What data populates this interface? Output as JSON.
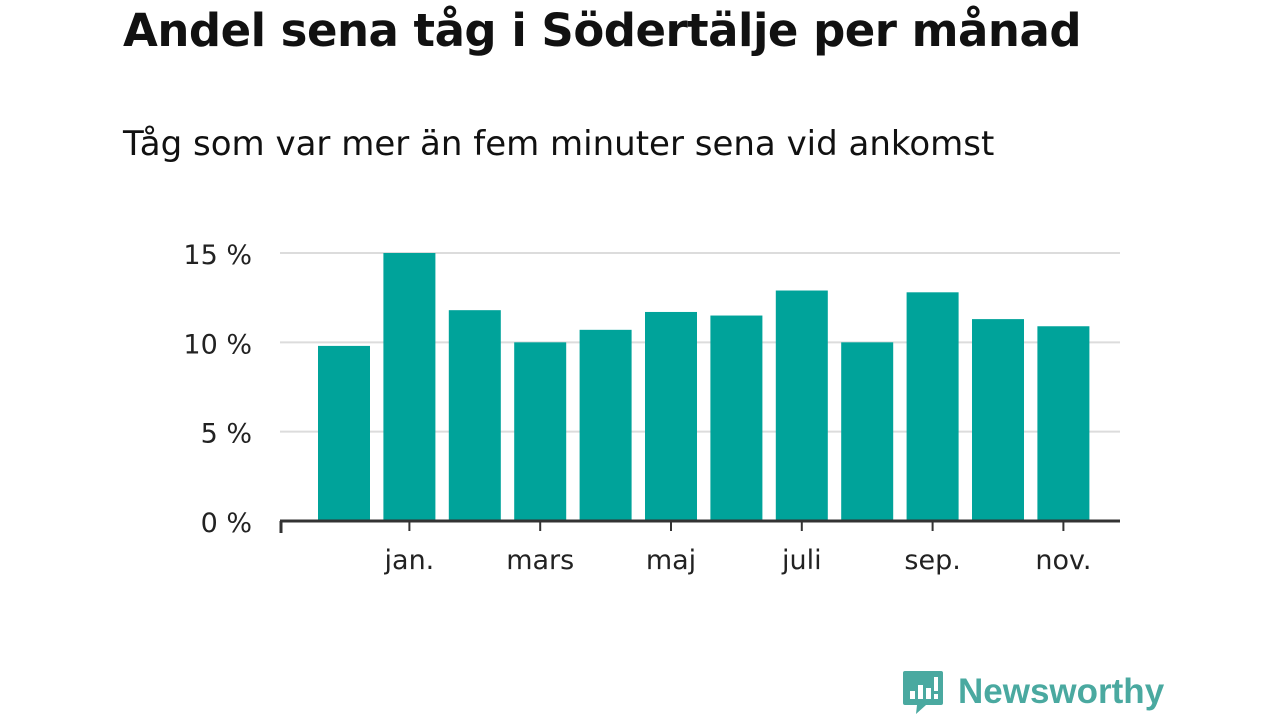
{
  "chart_data": {
    "type": "bar",
    "title": "Andel sena tåg i Södertälje per månad",
    "subtitle": "Tåg som var mer än fem minuter sena vid ankomst",
    "xlabel": "",
    "ylabel": "",
    "ylim": [
      0,
      15
    ],
    "yticks": [
      0,
      5,
      10,
      15
    ],
    "ytick_labels": [
      "0 %",
      "5 %",
      "10 %",
      "15 %"
    ],
    "categories": [
      "",
      "jan.",
      "",
      "mars",
      "",
      "maj",
      "",
      "juli",
      "",
      "sep.",
      "",
      "nov."
    ],
    "values": [
      9.8,
      15.0,
      11.8,
      10.0,
      10.7,
      11.7,
      11.5,
      12.9,
      10.0,
      12.8,
      11.3,
      10.9
    ],
    "grid": true,
    "colors": {
      "bar": "#00a39a",
      "grid": "#dcdcdc",
      "axis": "#333333",
      "text": "#222222"
    }
  },
  "brand": {
    "name": "Newsworthy",
    "logo_icon": "newsworthy-logo-icon",
    "color": "#4aa9a0"
  }
}
